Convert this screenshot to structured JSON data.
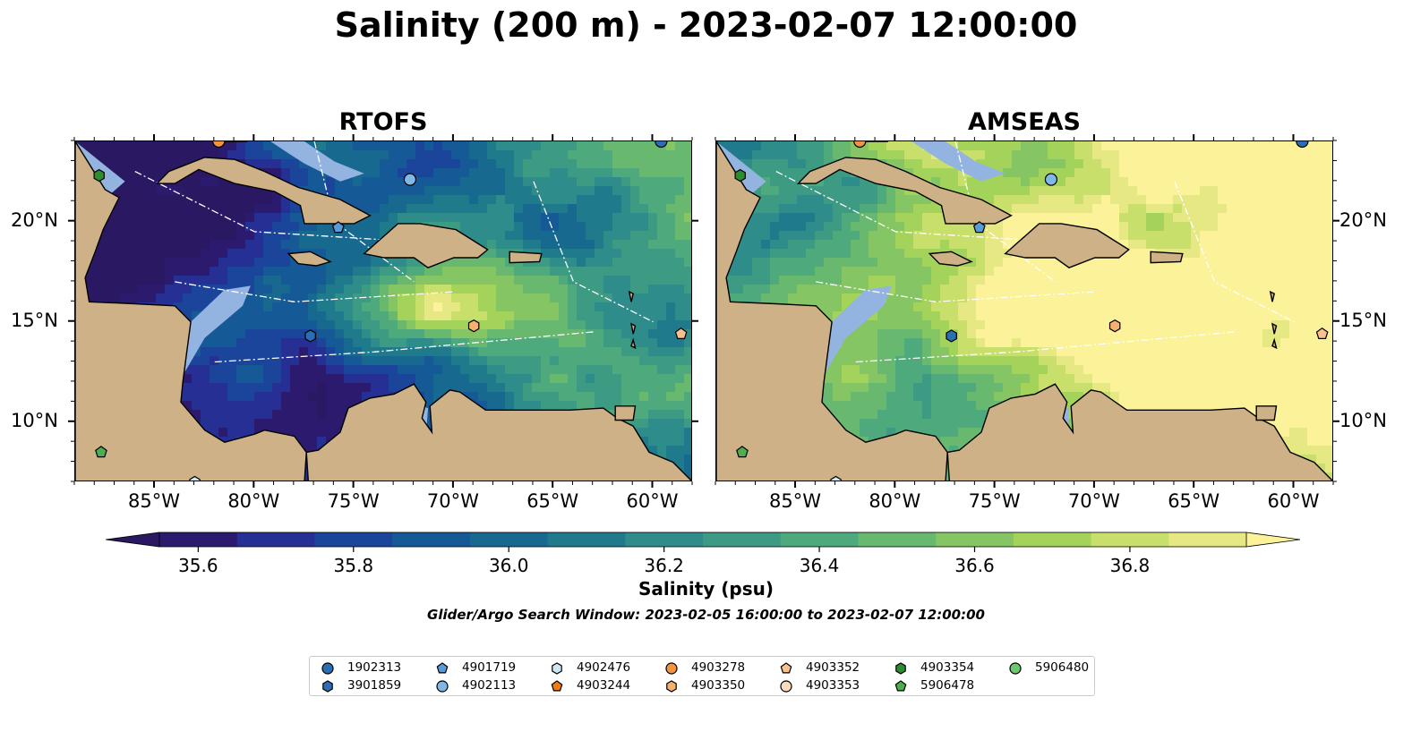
{
  "title": "Salinity (200 m) - 2023-02-07 12:00:00",
  "panels": [
    {
      "title": "RTOFS",
      "colormap_shift": -0.35
    },
    {
      "title": "AMSEAS",
      "colormap_shift": 0.25
    }
  ],
  "axes": {
    "lon_labels": [
      "85°W",
      "80°W",
      "75°W",
      "70°W",
      "65°W",
      "60°W"
    ],
    "lat_labels": [
      "20°N",
      "15°N",
      "10°N"
    ],
    "lon_range": [
      -89,
      -58
    ],
    "lat_range": [
      7,
      24
    ]
  },
  "colorbar": {
    "label": "Salinity (psu)",
    "ticks": [
      "35.6",
      "35.8",
      "36.0",
      "36.2",
      "36.4",
      "36.6",
      "36.8"
    ],
    "min": 35.55,
    "max": 36.95,
    "colors": [
      "#2b1a6e",
      "#262f94",
      "#1b449b",
      "#155a96",
      "#17698f",
      "#1f7a8c",
      "#2e8c8a",
      "#3d9b84",
      "#4eaa7c",
      "#68b96f",
      "#85c563",
      "#a4d35b",
      "#c8df6b",
      "#e6e884"
    ],
    "low_color": "#2a1863",
    "high_color": "#fbf29a"
  },
  "search_window": "Glider/Argo Search Window: 2023-02-05 16:00:00 to 2023-02-07 12:00:00",
  "legend": {
    "items": [
      {
        "id": "1902313",
        "marker": "circle",
        "color": "#2a6fb3"
      },
      {
        "id": "3901859",
        "marker": "hexagon",
        "color": "#2a6fb3"
      },
      {
        "id": "4901719",
        "marker": "pentagon",
        "color": "#5a9ad6"
      },
      {
        "id": "4902113",
        "marker": "circle",
        "color": "#7fb8e6"
      },
      {
        "id": "4902476",
        "marker": "hexagon",
        "color": "#cfe6f7"
      },
      {
        "id": "4903244",
        "marker": "pentagon",
        "color": "#f07c16"
      },
      {
        "id": "4903278",
        "marker": "circle",
        "color": "#f49342"
      },
      {
        "id": "4903350",
        "marker": "hexagon",
        "color": "#f7b06e"
      },
      {
        "id": "4903352",
        "marker": "pentagon",
        "color": "#f8c18f"
      },
      {
        "id": "4903353",
        "marker": "circle",
        "color": "#fbdcc0"
      },
      {
        "id": "4903354",
        "marker": "hexagon",
        "color": "#2e8b2e"
      },
      {
        "id": "5906478",
        "marker": "pentagon",
        "color": "#4cae4c"
      },
      {
        "id": "5906480",
        "marker": "circle",
        "color": "#6cc86c"
      }
    ]
  },
  "colors": {
    "land": "#cfb187",
    "shelf": "#93b4e0"
  }
}
